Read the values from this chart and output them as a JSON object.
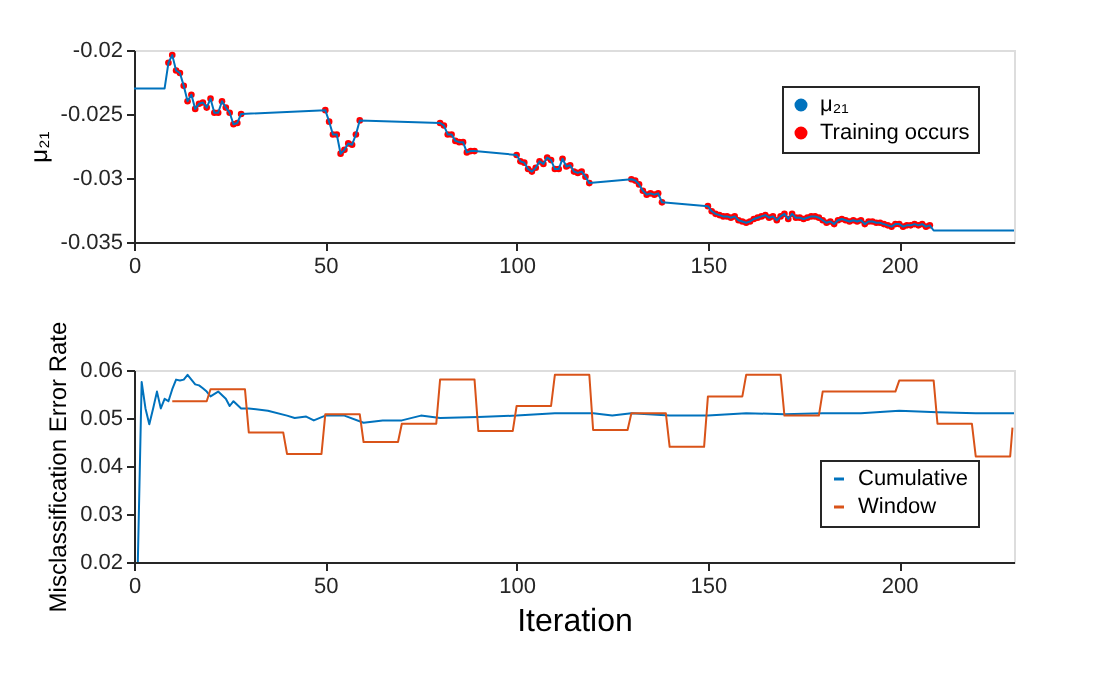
{
  "chart_data": [
    {
      "type": "line",
      "ylabel": "μ₂₁",
      "xlim": [
        0,
        230
      ],
      "xticks": [
        0,
        50,
        100,
        150,
        200
      ],
      "ylim": [
        -0.035,
        -0.02
      ],
      "yticks": [
        -0.035,
        -0.03,
        -0.025,
        -0.02
      ],
      "grid": false,
      "legend": "top right",
      "series": [
        {
          "name": "μ₂₁",
          "type": "line",
          "color": "#0072bd",
          "x": [
            0,
            8,
            9,
            10,
            11,
            12,
            13,
            14,
            15,
            16,
            17,
            18,
            19,
            20,
            21,
            22,
            23,
            24,
            25,
            26,
            27,
            28,
            50,
            51,
            52,
            53,
            54,
            55,
            56,
            57,
            58,
            59,
            80,
            81,
            82,
            83,
            84,
            85,
            86,
            87,
            88,
            89,
            100,
            101,
            102,
            103,
            104,
            105,
            106,
            107,
            108,
            109,
            110,
            111,
            112,
            113,
            114,
            115,
            116,
            117,
            118,
            119,
            130,
            131,
            132,
            133,
            134,
            135,
            136,
            137,
            138,
            150,
            151,
            152,
            153,
            154,
            155,
            156,
            157,
            158,
            159,
            160,
            161,
            162,
            163,
            164,
            165,
            166,
            167,
            168,
            169,
            170,
            171,
            172,
            173,
            174,
            175,
            176,
            177,
            178,
            179,
            180,
            181,
            182,
            183,
            184,
            185,
            186,
            187,
            188,
            189,
            190,
            191,
            192,
            193,
            194,
            195,
            196,
            197,
            198,
            199,
            200,
            201,
            202,
            203,
            204,
            205,
            206,
            207,
            208,
            209,
            230
          ],
          "values": [
            -0.023,
            -0.023,
            -0.021,
            -0.0204,
            -0.0216,
            -0.0218,
            -0.0228,
            -0.024,
            -0.0235,
            -0.0246,
            -0.0242,
            -0.0241,
            -0.0245,
            -0.0238,
            -0.0249,
            -0.0249,
            -0.024,
            -0.0245,
            -0.0249,
            -0.0258,
            -0.0257,
            -0.025,
            -0.0247,
            -0.0256,
            -0.0266,
            -0.0266,
            -0.0281,
            -0.0278,
            -0.0273,
            -0.0274,
            -0.0266,
            -0.0255,
            -0.0257,
            -0.0259,
            -0.0266,
            -0.0266,
            -0.0271,
            -0.0272,
            -0.0272,
            -0.028,
            -0.0279,
            -0.0279,
            -0.0282,
            -0.0287,
            -0.0288,
            -0.0293,
            -0.0295,
            -0.0292,
            -0.0287,
            -0.0289,
            -0.0284,
            -0.0286,
            -0.0293,
            -0.0293,
            -0.0285,
            -0.0291,
            -0.029,
            -0.0295,
            -0.0296,
            -0.0295,
            -0.0299,
            -0.0304,
            -0.0301,
            -0.0302,
            -0.0305,
            -0.031,
            -0.0313,
            -0.0312,
            -0.0313,
            -0.0312,
            -0.0319,
            -0.0322,
            -0.0326,
            -0.0328,
            -0.0329,
            -0.033,
            -0.033,
            -0.0331,
            -0.033,
            -0.0333,
            -0.0334,
            -0.0335,
            -0.0334,
            -0.0332,
            -0.0331,
            -0.033,
            -0.0329,
            -0.0331,
            -0.033,
            -0.0333,
            -0.033,
            -0.0328,
            -0.0332,
            -0.0328,
            -0.0331,
            -0.0331,
            -0.0332,
            -0.0331,
            -0.033,
            -0.033,
            -0.0331,
            -0.0333,
            -0.0335,
            -0.0334,
            -0.0336,
            -0.0333,
            -0.0332,
            -0.0333,
            -0.0334,
            -0.0333,
            -0.0334,
            -0.0333,
            -0.0336,
            -0.0334,
            -0.0334,
            -0.0335,
            -0.0335,
            -0.0336,
            -0.0337,
            -0.0338,
            -0.0336,
            -0.0336,
            -0.0338,
            -0.0337,
            -0.0337,
            -0.0336,
            -0.0337,
            -0.0336,
            -0.0338,
            -0.0337,
            -0.0341,
            -0.0341
          ]
        },
        {
          "name": "Training occurs",
          "type": "scatter",
          "marker": "circle",
          "color": "#ff0000",
          "x": [
            9,
            10,
            11,
            12,
            13,
            14,
            15,
            16,
            17,
            18,
            19,
            20,
            21,
            22,
            23,
            24,
            25,
            26,
            27,
            28,
            50,
            51,
            52,
            53,
            54,
            55,
            56,
            57,
            58,
            59,
            80,
            81,
            82,
            83,
            84,
            85,
            86,
            87,
            88,
            89,
            100,
            101,
            102,
            103,
            104,
            105,
            106,
            107,
            108,
            109,
            110,
            111,
            112,
            113,
            114,
            115,
            116,
            117,
            118,
            119,
            130,
            131,
            132,
            133,
            134,
            135,
            136,
            137,
            138,
            150,
            151,
            152,
            153,
            154,
            155,
            156,
            157,
            158,
            159,
            160,
            161,
            162,
            163,
            164,
            165,
            166,
            167,
            168,
            169,
            170,
            171,
            172,
            173,
            174,
            175,
            176,
            177,
            178,
            179,
            180,
            181,
            182,
            183,
            184,
            185,
            186,
            187,
            188,
            189,
            190,
            191,
            192,
            193,
            194,
            195,
            196,
            197,
            198,
            199,
            200,
            201,
            202,
            203,
            204,
            205,
            206,
            207,
            208
          ],
          "values": [
            -0.021,
            -0.0204,
            -0.0216,
            -0.0218,
            -0.0228,
            -0.024,
            -0.0235,
            -0.0246,
            -0.0242,
            -0.0241,
            -0.0245,
            -0.0238,
            -0.0249,
            -0.0249,
            -0.024,
            -0.0245,
            -0.0249,
            -0.0258,
            -0.0257,
            -0.025,
            -0.0247,
            -0.0256,
            -0.0266,
            -0.0266,
            -0.0281,
            -0.0278,
            -0.0273,
            -0.0274,
            -0.0266,
            -0.0255,
            -0.0257,
            -0.0259,
            -0.0266,
            -0.0266,
            -0.0271,
            -0.0272,
            -0.0272,
            -0.028,
            -0.0279,
            -0.0279,
            -0.0282,
            -0.0287,
            -0.0288,
            -0.0293,
            -0.0295,
            -0.0292,
            -0.0287,
            -0.0289,
            -0.0284,
            -0.0286,
            -0.0293,
            -0.0293,
            -0.0285,
            -0.0291,
            -0.029,
            -0.0295,
            -0.0296,
            -0.0295,
            -0.0299,
            -0.0304,
            -0.0301,
            -0.0302,
            -0.0305,
            -0.031,
            -0.0313,
            -0.0312,
            -0.0313,
            -0.0312,
            -0.0319,
            -0.0322,
            -0.0326,
            -0.0328,
            -0.0329,
            -0.033,
            -0.033,
            -0.0331,
            -0.033,
            -0.0333,
            -0.0334,
            -0.0335,
            -0.0334,
            -0.0332,
            -0.0331,
            -0.033,
            -0.0329,
            -0.0331,
            -0.033,
            -0.0333,
            -0.033,
            -0.0328,
            -0.0332,
            -0.0328,
            -0.0331,
            -0.0331,
            -0.0332,
            -0.0331,
            -0.033,
            -0.033,
            -0.0331,
            -0.0333,
            -0.0335,
            -0.0334,
            -0.0336,
            -0.0333,
            -0.0332,
            -0.0333,
            -0.0334,
            -0.0333,
            -0.0334,
            -0.0333,
            -0.0336,
            -0.0334,
            -0.0334,
            -0.0335,
            -0.0335,
            -0.0336,
            -0.0337,
            -0.0338,
            -0.0336,
            -0.0336,
            -0.0338,
            -0.0337,
            -0.0337,
            -0.0336,
            -0.0337,
            -0.0336,
            -0.0338,
            -0.0337
          ]
        }
      ]
    },
    {
      "type": "line",
      "xlabel": "Iteration",
      "ylabel": "Misclassification Error Rate",
      "xlim": [
        0,
        230
      ],
      "xticks": [
        0,
        50,
        100,
        150,
        200
      ],
      "ylim": [
        0.02,
        0.06
      ],
      "yticks": [
        0.02,
        0.03,
        0.04,
        0.05,
        0.06
      ],
      "grid": false,
      "legend": "bottom right",
      "series": [
        {
          "name": "Cumulative",
          "color": "#0072bd",
          "x": [
            1,
            2,
            3,
            4,
            5,
            6,
            7,
            8,
            9,
            10,
            11,
            12,
            13,
            14,
            15,
            16,
            17,
            18,
            19,
            20,
            22,
            24,
            25,
            26,
            28,
            30,
            35,
            40,
            42,
            45,
            47,
            50,
            55,
            60,
            65,
            70,
            75,
            80,
            90,
            100,
            110,
            120,
            125,
            130,
            140,
            150,
            160,
            170,
            180,
            190,
            200,
            210,
            220,
            230
          ],
          "values": [
            0.02,
            0.0575,
            0.052,
            0.0487,
            0.052,
            0.0555,
            0.052,
            0.054,
            0.0535,
            0.056,
            0.058,
            0.0578,
            0.058,
            0.059,
            0.058,
            0.057,
            0.0568,
            0.0562,
            0.0555,
            0.0545,
            0.0555,
            0.054,
            0.0525,
            0.0535,
            0.052,
            0.052,
            0.0515,
            0.0505,
            0.05,
            0.0503,
            0.0495,
            0.0505,
            0.0505,
            0.049,
            0.0495,
            0.0495,
            0.0505,
            0.05,
            0.0502,
            0.0505,
            0.051,
            0.051,
            0.0505,
            0.051,
            0.0505,
            0.0505,
            0.051,
            0.0508,
            0.051,
            0.051,
            0.0515,
            0.0512,
            0.051,
            0.051
          ]
        },
        {
          "name": "Window",
          "color": "#d95319",
          "x": [
            10,
            19,
            20,
            29,
            30,
            39,
            40,
            49,
            50,
            59,
            60,
            69,
            70,
            79,
            80,
            89,
            90,
            99,
            100,
            109,
            110,
            119,
            120,
            129,
            130,
            139,
            140,
            149,
            150,
            159,
            160,
            169,
            170,
            179,
            180,
            199,
            200,
            209,
            210,
            219,
            220,
            229,
            229.6
          ],
          "values": [
            0.0535,
            0.0535,
            0.056,
            0.056,
            0.047,
            0.047,
            0.0425,
            0.0425,
            0.0508,
            0.0508,
            0.045,
            0.045,
            0.0488,
            0.0488,
            0.058,
            0.058,
            0.0473,
            0.0473,
            0.0525,
            0.0525,
            0.059,
            0.059,
            0.0475,
            0.0475,
            0.051,
            0.051,
            0.044,
            0.044,
            0.0545,
            0.0545,
            0.059,
            0.059,
            0.0505,
            0.0505,
            0.0555,
            0.0555,
            0.0578,
            0.0578,
            0.0488,
            0.0488,
            0.042,
            0.042,
            0.048
          ]
        }
      ]
    }
  ]
}
